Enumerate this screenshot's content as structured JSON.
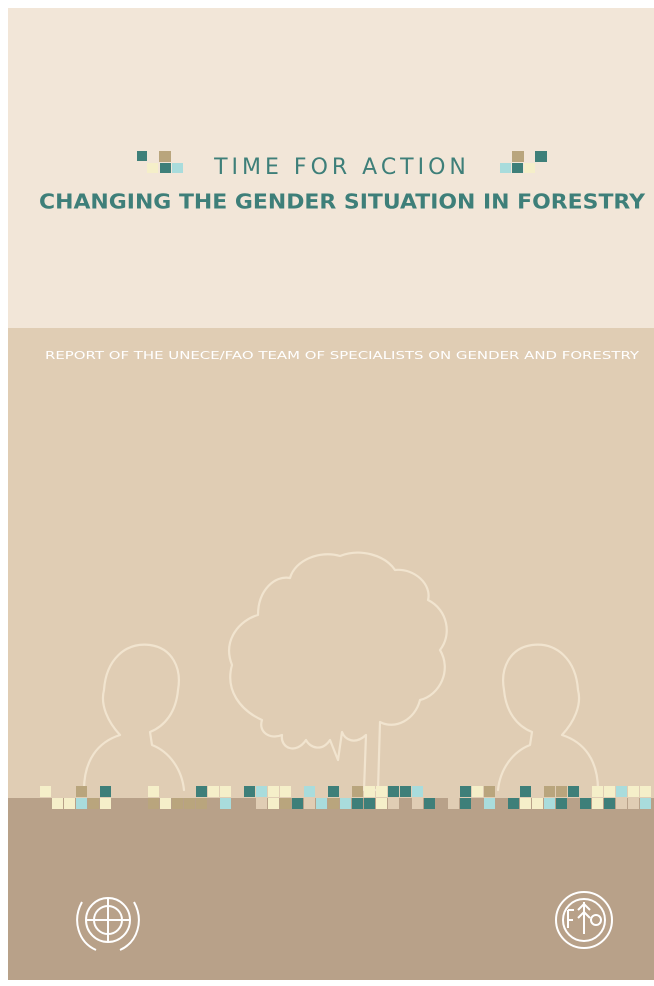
{
  "cover": {
    "kicker": "TIME FOR ACTION",
    "title": "CHANGING THE GENDER SITUATION IN FORESTRY",
    "subtitle": "REPORT OF THE UNECE/FAO TEAM OF SPECIALISTS ON GENDER AND FORESTRY"
  }
}
